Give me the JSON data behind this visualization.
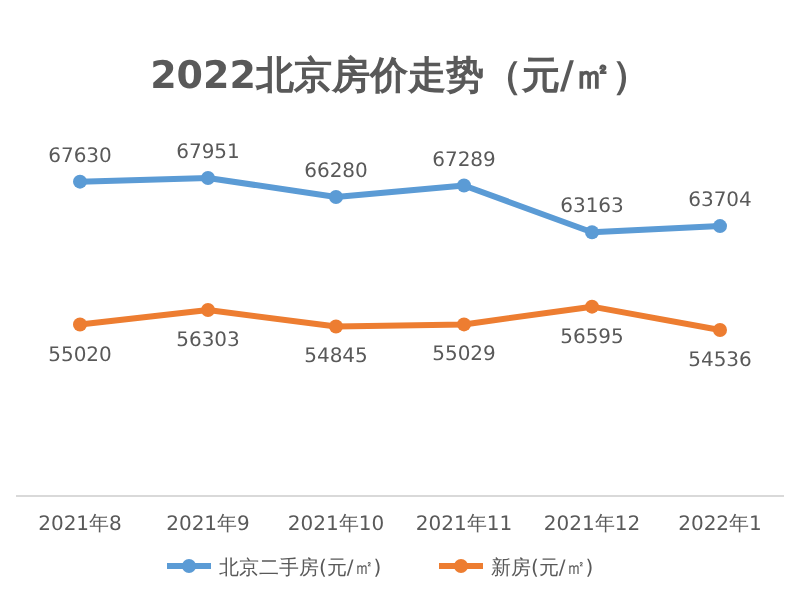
{
  "chart_data": {
    "type": "line",
    "title": "2022北京房价走势（元/㎡）",
    "categories": [
      "2021年8",
      "2021年9",
      "2021年10",
      "2021年11",
      "2021年12",
      "2022年1"
    ],
    "series": [
      {
        "name": "北京二手房(元/㎡)",
        "color": "#5b9bd5",
        "values": [
          67630,
          67951,
          66280,
          67289,
          63163,
          63704
        ]
      },
      {
        "name": "新房(元/㎡)",
        "color": "#ed7d31",
        "values": [
          55020,
          56303,
          54845,
          55029,
          56595,
          54536
        ]
      }
    ],
    "data_labels": true,
    "legend": "bottom",
    "marker": "circle",
    "tick_labels": "x"
  }
}
